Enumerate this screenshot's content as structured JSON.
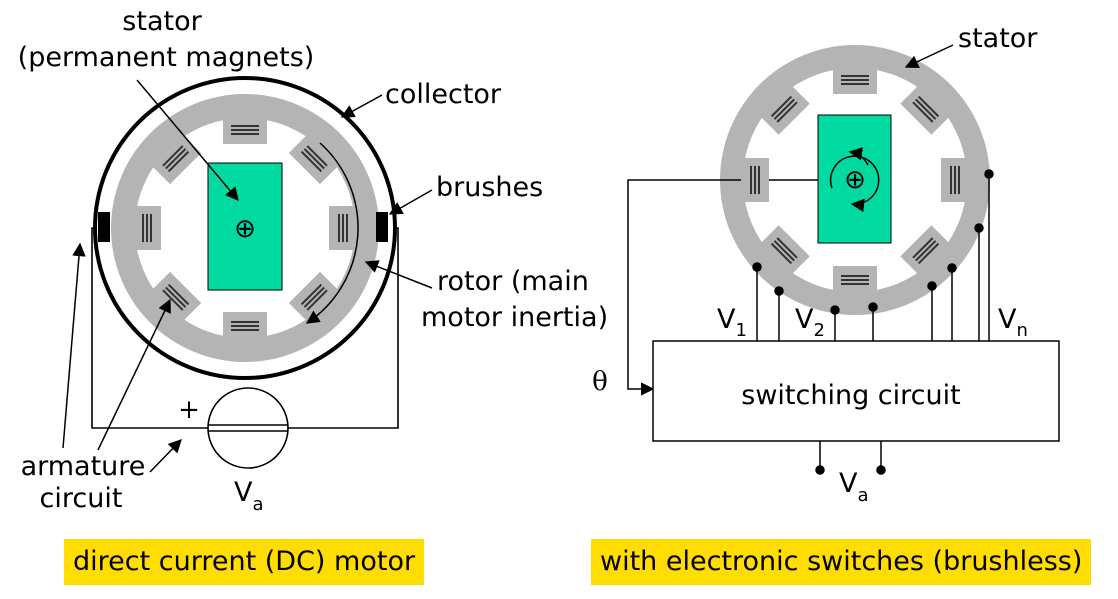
{
  "left": {
    "stator_label_1": "stator",
    "stator_label_2": "(permanent magnets)",
    "collector_label": "collector",
    "brushes_label": "brushes",
    "rotor_label_1": "rotor (main",
    "rotor_label_2": "motor inertia)",
    "armature_label_1": "armature",
    "armature_label_2": "circuit",
    "plus_sign": "+",
    "va_base": "V",
    "va_sub": "a",
    "center_symbol": "⊕",
    "caption": "direct current (DC) motor"
  },
  "right": {
    "stator_label": "stator",
    "v1_base": "V",
    "v1_sub": "1",
    "v2_base": "V",
    "v2_sub": "2",
    "vn_base": "V",
    "vn_sub": "n",
    "theta": "θ",
    "switching_label": "switching circuit",
    "va_base": "V",
    "va_sub": "a",
    "center_symbol": "⊕",
    "caption": "with electronic switches (brushless)"
  },
  "colors": {
    "rotor": "#00d9a0",
    "stator": "#b4b4b4",
    "caption_bg": "#ffdd00"
  }
}
